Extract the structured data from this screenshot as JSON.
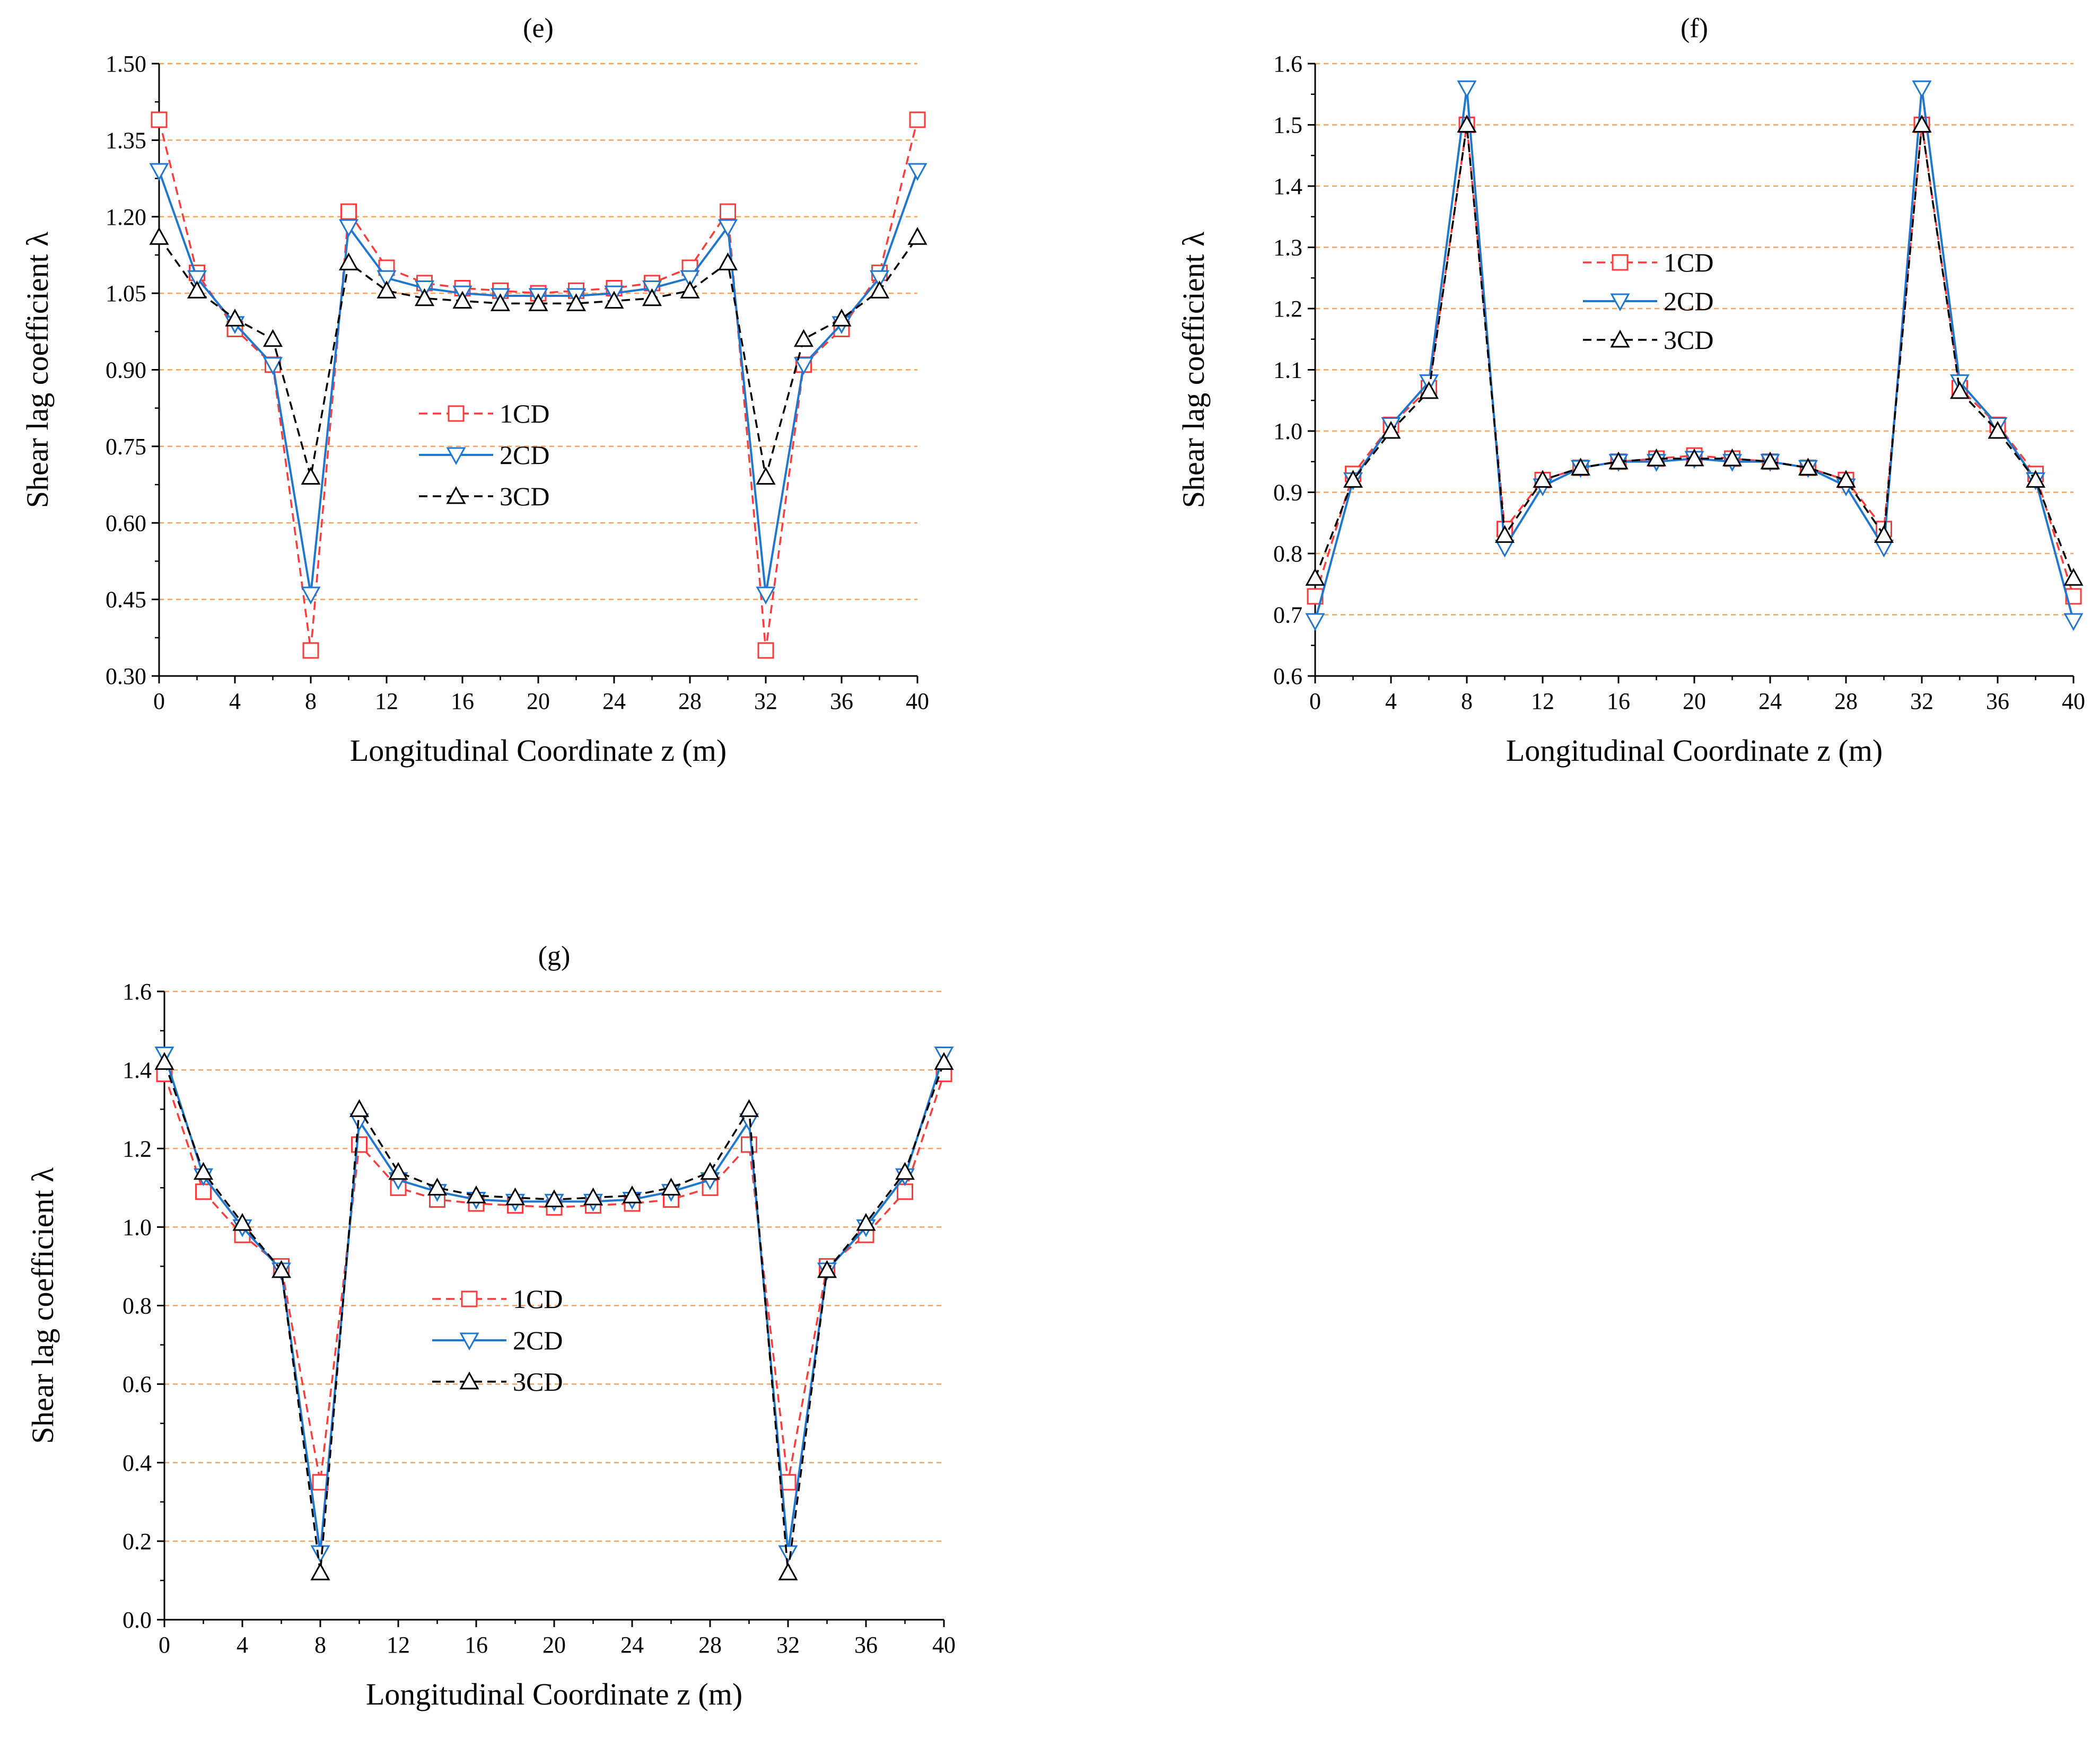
{
  "figure": {
    "colors": {
      "series_1CD": "#ff3b3b",
      "series_2CD": "#1f77d0",
      "series_3CD": "#000000",
      "gridline": "#f4a460"
    }
  },
  "chart_data": [
    {
      "panel": "e",
      "type": "line",
      "title": "(e)",
      "xlabel": "Longitudinal Coordinate z (m)",
      "ylabel": "Shear lag coefficient λ",
      "xlim": [
        0,
        40
      ],
      "ylim": [
        0.3,
        1.5
      ],
      "xticks": [
        0,
        4,
        8,
        12,
        16,
        20,
        24,
        28,
        32,
        36,
        40
      ],
      "xtick_labels": [
        "0",
        "4",
        "8",
        "12",
        "16",
        "20",
        "24",
        "28",
        "32",
        "36",
        "40"
      ],
      "yticks": [
        0.3,
        0.45,
        0.6,
        0.75,
        0.9,
        1.05,
        1.2,
        1.35,
        1.5
      ],
      "ytick_labels": [
        "0.30",
        "0.45",
        "0.60",
        "0.75",
        "0.90",
        "1.05",
        "1.20",
        "1.35",
        "1.50"
      ],
      "grid": "horizontal dashed",
      "legend_position": "center-left",
      "x": [
        0,
        2,
        4,
        6,
        8,
        10,
        12,
        14,
        16,
        18,
        20,
        22,
        24,
        26,
        28,
        30,
        32,
        34,
        36,
        38,
        40
      ],
      "series": [
        {
          "name": "1CD",
          "style": "dashed",
          "marker": "square",
          "values": [
            1.39,
            1.09,
            0.98,
            0.91,
            0.35,
            1.21,
            1.1,
            1.07,
            1.06,
            1.055,
            1.05,
            1.055,
            1.06,
            1.07,
            1.1,
            1.21,
            0.35,
            0.91,
            0.98,
            1.09,
            1.39
          ]
        },
        {
          "name": "2CD",
          "style": "solid",
          "marker": "triangle-down",
          "values": [
            1.29,
            1.08,
            0.99,
            0.91,
            0.46,
            1.18,
            1.08,
            1.06,
            1.05,
            1.045,
            1.045,
            1.045,
            1.05,
            1.06,
            1.08,
            1.18,
            0.46,
            0.91,
            0.99,
            1.08,
            1.29
          ]
        },
        {
          "name": "3CD",
          "style": "dashed",
          "marker": "triangle-up",
          "values": [
            1.16,
            1.055,
            1.0,
            0.96,
            0.69,
            1.11,
            1.055,
            1.04,
            1.035,
            1.03,
            1.03,
            1.03,
            1.035,
            1.04,
            1.055,
            1.11,
            0.69,
            0.96,
            1.0,
            1.055,
            1.16
          ]
        }
      ]
    },
    {
      "panel": "f",
      "type": "line",
      "title": "(f)",
      "xlabel": "Longitudinal Coordinate z (m)",
      "ylabel": "Shear lag coefficient λ",
      "xlim": [
        0,
        40
      ],
      "ylim": [
        0.6,
        1.6
      ],
      "xticks": [
        0,
        4,
        8,
        12,
        16,
        20,
        24,
        28,
        32,
        36,
        40
      ],
      "xtick_labels": [
        "0",
        "4",
        "8",
        "12",
        "16",
        "20",
        "24",
        "28",
        "32",
        "36",
        "40"
      ],
      "yticks": [
        0.6,
        0.7,
        0.8,
        0.9,
        1.0,
        1.1,
        1.2,
        1.3,
        1.4,
        1.5,
        1.6
      ],
      "ytick_labels": [
        "0.6",
        "0.7",
        "0.8",
        "0.9",
        "1.0",
        "1.1",
        "1.2",
        "1.3",
        "1.4",
        "1.5",
        "1.6"
      ],
      "grid": "horizontal dashed",
      "legend_position": "top-center",
      "x": [
        0,
        2,
        4,
        6,
        8,
        10,
        12,
        14,
        16,
        18,
        20,
        22,
        24,
        26,
        28,
        30,
        32,
        34,
        36,
        38,
        40
      ],
      "series": [
        {
          "name": "1CD",
          "style": "dashed",
          "marker": "square",
          "values": [
            0.73,
            0.93,
            1.01,
            1.07,
            1.5,
            0.84,
            0.92,
            0.94,
            0.95,
            0.955,
            0.96,
            0.955,
            0.95,
            0.94,
            0.92,
            0.84,
            1.5,
            1.07,
            1.01,
            0.93,
            0.73
          ]
        },
        {
          "name": "2CD",
          "style": "solid",
          "marker": "triangle-down",
          "values": [
            0.69,
            0.92,
            1.01,
            1.08,
            1.56,
            0.81,
            0.91,
            0.94,
            0.95,
            0.95,
            0.955,
            0.95,
            0.95,
            0.94,
            0.91,
            0.81,
            1.56,
            1.08,
            1.01,
            0.92,
            0.69
          ]
        },
        {
          "name": "3CD",
          "style": "dashed",
          "marker": "triangle-up",
          "values": [
            0.76,
            0.92,
            1.0,
            1.065,
            1.5,
            0.83,
            0.92,
            0.94,
            0.95,
            0.955,
            0.955,
            0.955,
            0.95,
            0.94,
            0.92,
            0.83,
            1.5,
            1.065,
            1.0,
            0.92,
            0.76
          ]
        }
      ]
    },
    {
      "panel": "g",
      "type": "line",
      "title": "(g)",
      "xlabel": "Longitudinal Coordinate z (m)",
      "ylabel": "Shear lag coefficient λ",
      "xlim": [
        0,
        40
      ],
      "ylim": [
        0.0,
        1.6
      ],
      "xticks": [
        0,
        4,
        8,
        12,
        16,
        20,
        24,
        28,
        32,
        36,
        40
      ],
      "xtick_labels": [
        "0",
        "4",
        "8",
        "12",
        "16",
        "20",
        "24",
        "28",
        "32",
        "36",
        "40"
      ],
      "yticks": [
        0.0,
        0.2,
        0.4,
        0.6,
        0.8,
        1.0,
        1.2,
        1.4,
        1.6
      ],
      "ytick_labels": [
        "0.0",
        "0.2",
        "0.4",
        "0.6",
        "0.8",
        "1.0",
        "1.2",
        "1.4",
        "1.6"
      ],
      "grid": "horizontal dashed",
      "legend_position": "center",
      "x": [
        0,
        2,
        4,
        6,
        8,
        10,
        12,
        14,
        16,
        18,
        20,
        22,
        24,
        26,
        28,
        30,
        32,
        34,
        36,
        38,
        40
      ],
      "series": [
        {
          "name": "1CD",
          "style": "dashed",
          "marker": "square",
          "values": [
            1.39,
            1.09,
            0.98,
            0.9,
            0.35,
            1.21,
            1.1,
            1.07,
            1.06,
            1.055,
            1.05,
            1.055,
            1.06,
            1.07,
            1.1,
            1.21,
            0.35,
            0.9,
            0.98,
            1.09,
            1.39
          ]
        },
        {
          "name": "2CD",
          "style": "solid",
          "marker": "triangle-down",
          "values": [
            1.44,
            1.13,
            1.0,
            0.89,
            0.17,
            1.27,
            1.12,
            1.09,
            1.07,
            1.065,
            1.065,
            1.065,
            1.07,
            1.09,
            1.12,
            1.27,
            0.17,
            0.89,
            1.0,
            1.13,
            1.44
          ]
        },
        {
          "name": "3CD",
          "style": "dashed",
          "marker": "triangle-up",
          "values": [
            1.42,
            1.14,
            1.01,
            0.89,
            0.12,
            1.3,
            1.14,
            1.1,
            1.08,
            1.075,
            1.07,
            1.075,
            1.08,
            1.1,
            1.14,
            1.3,
            0.12,
            0.89,
            1.01,
            1.14,
            1.42
          ]
        }
      ]
    }
  ]
}
